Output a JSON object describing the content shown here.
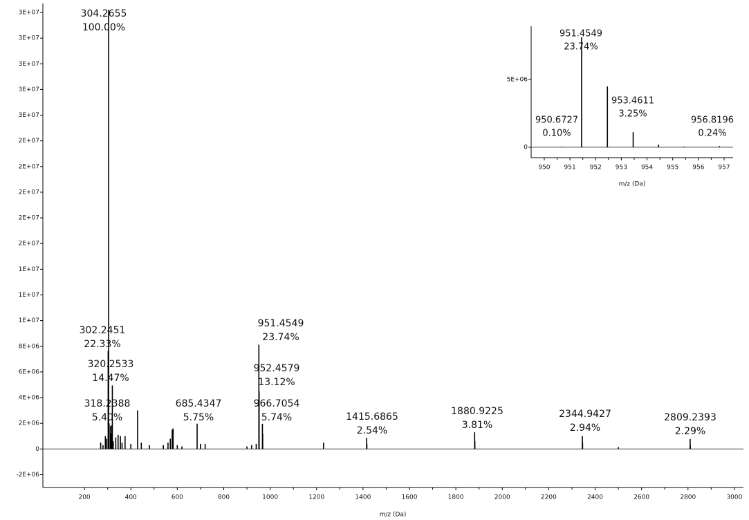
{
  "chart_data": [
    {
      "type": "stem",
      "xlabel": "m/z (Da)",
      "xlim": [
        21,
        3039
      ],
      "xticks": [
        200,
        400,
        600,
        800,
        1000,
        1200,
        1400,
        1600,
        1800,
        2000,
        2200,
        2400,
        2600,
        2800,
        3000
      ],
      "ylim": [
        -3000000,
        34700000
      ],
      "yticks": [
        {
          "value": -2000000,
          "label": "-2E+06"
        },
        0,
        {
          "value": 2000000,
          "label": "2E+06"
        },
        {
          "value": 4000000,
          "label": "4E+06"
        },
        {
          "value": 6000000,
          "label": "6E+06"
        },
        {
          "value": 8000000,
          "label": "8E+06"
        },
        {
          "value": 10000000,
          "label": "1E+07"
        },
        {
          "value": 12000000,
          "label": "1E+07"
        },
        {
          "value": 14000000,
          "label": "1E+07"
        },
        {
          "value": 16000000,
          "label": "2E+07"
        },
        {
          "value": 18000000,
          "label": "2E+07"
        },
        {
          "value": 20000000,
          "label": "2E+07"
        },
        {
          "value": 22000000,
          "label": "2E+07"
        },
        {
          "value": 24000000,
          "label": "2E+07"
        },
        {
          "value": 26000000,
          "label": "3E+07"
        },
        {
          "value": 28000000,
          "label": "3E+07"
        },
        {
          "value": 30000000,
          "label": "3E+07"
        },
        {
          "value": 32000000,
          "label": "3E+07"
        },
        {
          "value": 34000000,
          "label": "3E+07"
        }
      ],
      "series": [
        {
          "color": "#000000",
          "x": [
            304.2655,
            302.2451,
            320.2533,
            318.2388,
            685.4347,
            951.4549,
            952.4579,
            966.7054,
            1415.6865,
            1880.9225,
            2344.9427,
            2809.2393
          ],
          "values": [
            34200000,
            7640000,
            4950000,
            1850000,
            1970000,
            8120000,
            4490000,
            1960000,
            870000,
            1300000,
            1010000,
            780000
          ],
          "relative": [
            100.0,
            22.33,
            14.47,
            5.4,
            5.75,
            23.74,
            13.12,
            5.74,
            2.54,
            3.81,
            2.94,
            2.29
          ],
          "relative_labels": [
            "100.00%",
            "22.33%",
            "14.47%",
            "5.40%",
            "5.75%",
            "23.74%",
            "13.12%",
            "5.74%",
            "2.54%",
            "3.81%",
            "2.94%",
            "2.29%"
          ]
        },
        {
          "color": "#000000",
          "x": [
            270,
            280,
            290,
            296,
            306,
            312,
            316,
            324,
            335,
            345,
            355,
            362,
            375,
            400,
            429,
            445,
            480,
            540,
            560,
            570,
            578,
            582,
            600,
            620,
            700,
            720,
            900,
            920,
            940,
            968,
            1230,
            1416.7,
            1881.9,
            2345.9,
            2500,
            2810
          ],
          "values": [
            500000,
            300000,
            1000000,
            800000,
            2000000,
            1800000,
            1200000,
            600000,
            900000,
            1100000,
            1000000,
            500000,
            1000000,
            400000,
            3000000,
            500000,
            300000,
            300000,
            500000,
            800000,
            1500000,
            1600000,
            300000,
            200000,
            400000,
            400000,
            200000,
            300000,
            400000,
            1200000,
            500000,
            400000,
            600000,
            500000,
            150000,
            300000
          ]
        }
      ]
    },
    {
      "type": "stem",
      "xlabel": "m/z (Da)",
      "xlim": [
        949.49,
        957.35
      ],
      "xticks": [
        950,
        951,
        952,
        953,
        954,
        955,
        956,
        957
      ],
      "ylim": [
        -770000,
        8930000
      ],
      "yticks": [
        0,
        {
          "value": 5000000,
          "label": "5E+06"
        }
      ],
      "series": [
        {
          "color": "#000000",
          "x": [
            951.4549,
            950.6727,
            953.4611,
            956.8196
          ],
          "values": [
            8120000,
            34000,
            1110000,
            82000
          ],
          "relative": [
            23.74,
            0.1,
            3.25,
            0.24
          ],
          "relative_labels": [
            "23.74%",
            "0.10%",
            "3.25%",
            "0.24%"
          ]
        },
        {
          "color": "#000000",
          "x": [
            952.4579,
            954.45,
            955.45
          ],
          "values": [
            4490000,
            200000,
            50000
          ]
        }
      ]
    }
  ]
}
